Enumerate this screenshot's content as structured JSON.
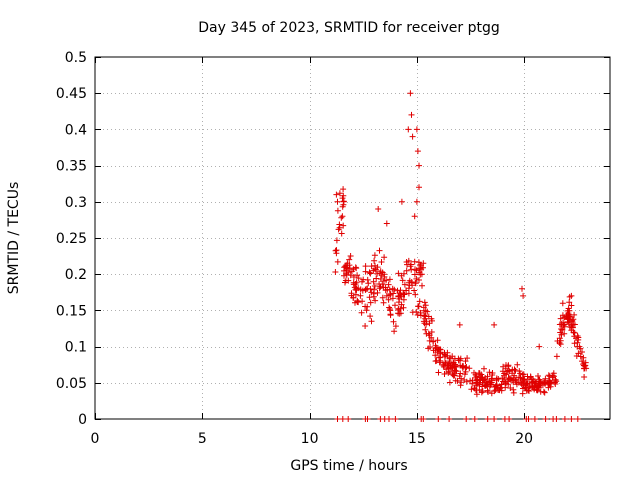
{
  "chart_data": {
    "type": "scatter",
    "title": "Day 345 of 2023, SRMTID for receiver ptgg",
    "xlabel": "GPS time / hours",
    "ylabel": "SRMTID / TECUs",
    "xlim": [
      0,
      24
    ],
    "ylim": [
      0,
      0.5
    ],
    "x_ticks": [
      0,
      5,
      10,
      15,
      20
    ],
    "x_tick_labels": [
      "0",
      "5",
      "10",
      "15",
      "20"
    ],
    "y_ticks": [
      0,
      0.05,
      0.1,
      0.15,
      0.2,
      0.25,
      0.3,
      0.35,
      0.4,
      0.45,
      0.5
    ],
    "y_tick_labels": [
      "0",
      "0.05",
      "0.1",
      "0.15",
      "0.2",
      "0.25",
      "0.3",
      "0.35",
      "0.4",
      "0.45",
      "0.5"
    ],
    "grid": true,
    "marker": "+",
    "marker_color": "#e00000",
    "series": [
      {
        "name": "SRMTID",
        "segments": [
          [
            11.2,
            11.6,
            0.22,
            0.3,
            0.06
          ],
          [
            11.6,
            12.6,
            0.21,
            0.16,
            0.05
          ],
          [
            12.6,
            13.3,
            0.17,
            0.2,
            0.06
          ],
          [
            13.3,
            13.9,
            0.2,
            0.16,
            0.05
          ],
          [
            13.9,
            14.5,
            0.15,
            0.19,
            0.05
          ],
          [
            14.5,
            15.3,
            0.2,
            0.18,
            0.06
          ],
          [
            15.3,
            16.2,
            0.14,
            0.08,
            0.04
          ],
          [
            16.2,
            17.5,
            0.08,
            0.06,
            0.03
          ],
          [
            17.5,
            19.0,
            0.05,
            0.05,
            0.025
          ],
          [
            19.0,
            20.2,
            0.06,
            0.05,
            0.025
          ],
          [
            20.2,
            21.5,
            0.05,
            0.05,
            0.02
          ],
          [
            21.5,
            22.1,
            0.1,
            0.15,
            0.03
          ],
          [
            22.1,
            22.9,
            0.15,
            0.06,
            0.03
          ]
        ],
        "outliers": [
          [
            11.25,
            0.31
          ],
          [
            11.3,
            0.3
          ],
          [
            13.2,
            0.29
          ],
          [
            13.6,
            0.27
          ],
          [
            14.3,
            0.3
          ],
          [
            14.6,
            0.4
          ],
          [
            14.7,
            0.45
          ],
          [
            14.75,
            0.42
          ],
          [
            14.8,
            0.39
          ],
          [
            15.0,
            0.4
          ],
          [
            15.05,
            0.37
          ],
          [
            15.1,
            0.35
          ],
          [
            15.1,
            0.32
          ],
          [
            15.0,
            0.3
          ],
          [
            14.9,
            0.28
          ],
          [
            19.9,
            0.18
          ],
          [
            19.95,
            0.17
          ],
          [
            18.6,
            0.13
          ],
          [
            17.0,
            0.13
          ],
          [
            20.7,
            0.1
          ],
          [
            21.8,
            0.16
          ],
          [
            22.2,
            0.17
          ]
        ],
        "zero_points": [
          11.3,
          11.55,
          11.8,
          12.6,
          12.7,
          13.3,
          13.5,
          13.7,
          14.0,
          15.2,
          15.3,
          16.0,
          16.5,
          17.3,
          17.7,
          18.3,
          18.6,
          19.1,
          19.3,
          20.1,
          20.2,
          20.5,
          21.0,
          21.35,
          21.5,
          21.9,
          22.2,
          22.5
        ]
      }
    ]
  }
}
